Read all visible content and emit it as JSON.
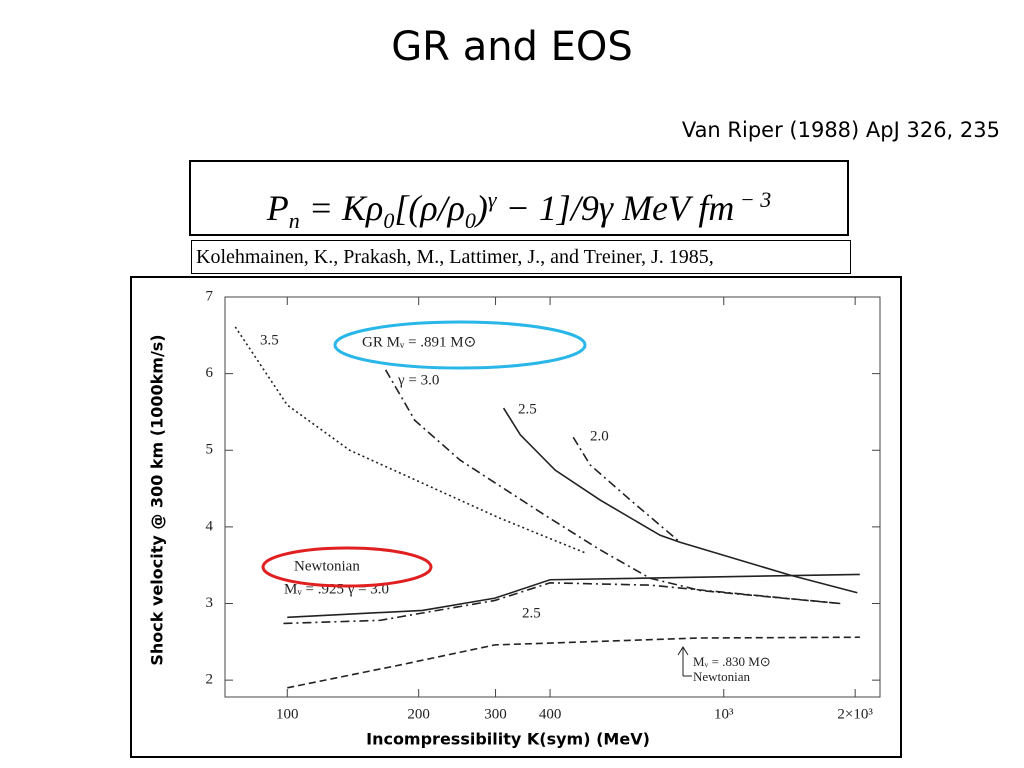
{
  "title": "GR and EOS",
  "citation": "Van Riper (1988) ApJ 326, 235",
  "formula": [
    "P",
    "n",
    " = Kρ",
    "0",
    "[(ρ/ρ",
    "0",
    ")",
    "γ",
    " − 1]/9γ  MeV fm",
    " − 3"
  ],
  "reference": "Kolehmainen, K., Prakash, M., Lattimer, J., and Treiner, J. 1985,",
  "chart_data": {
    "type": "line",
    "xlabel": "Incompressibility  K(sym)  (MeV)",
    "ylabel": "Shock velocity @ 300 km (1000km/s)",
    "xscale": "log",
    "xlim": [
      72,
      2280
    ],
    "ylim": [
      1.78,
      7
    ],
    "xticks": [
      100,
      200,
      300,
      400,
      {
        "value": 1000,
        "label": "10³"
      },
      {
        "value": 2000,
        "label": "2×10³"
      }
    ],
    "yticks": [
      2,
      3,
      4,
      5,
      6,
      7
    ],
    "annotations": [
      "3.5",
      "GR  Mᵥ = .891 M⊙",
      "γ = 3.0",
      "2.5",
      "2.0",
      "Newtonian",
      "Mᵥ = .925   γ = 3.0",
      "2.5",
      "Mᵥ = .830 M⊙",
      "Newtonian"
    ],
    "series": [
      {
        "color": "#222222",
        "style": "dotted",
        "x": [
          76,
          100,
          139,
          308,
          482
        ],
        "values": [
          6.61,
          5.59,
          5.0,
          4.11,
          3.66
        ]
      },
      {
        "color": "#222222",
        "style": "dashdot",
        "x": [
          168,
          196,
          249,
          390,
          521,
          678,
          883,
          1849
        ],
        "values": [
          6.05,
          5.39,
          4.87,
          4.15,
          3.7,
          3.33,
          3.17,
          3.0
        ]
      },
      {
        "color": "#222222",
        "style": "solid",
        "x": [
          313,
          342,
          411,
          521,
          715,
          794,
          1419,
          2023
        ],
        "values": [
          5.55,
          5.2,
          4.74,
          4.35,
          3.89,
          3.8,
          3.37,
          3.14
        ]
      },
      {
        "color": "#222222",
        "style": "dashdot",
        "x": [
          452,
          494,
          611,
          794
        ],
        "values": [
          5.17,
          4.81,
          4.35,
          3.8
        ]
      },
      {
        "color": "#222222",
        "style": "solid",
        "x": [
          100,
          204,
          299,
          400,
          2050
        ],
        "values": [
          2.82,
          2.91,
          3.07,
          3.31,
          3.38
        ]
      },
      {
        "color": "#222222",
        "style": "dashdot",
        "x": [
          98,
          163,
          299,
          400,
          678,
          1849
        ],
        "values": [
          2.74,
          2.78,
          3.04,
          3.27,
          3.24,
          3.0
        ]
      },
      {
        "color": "#222222",
        "style": "dashed",
        "x": [
          100,
          182,
          299,
          883,
          2050
        ],
        "values": [
          1.9,
          2.2,
          2.46,
          2.55,
          2.56
        ]
      }
    ]
  }
}
